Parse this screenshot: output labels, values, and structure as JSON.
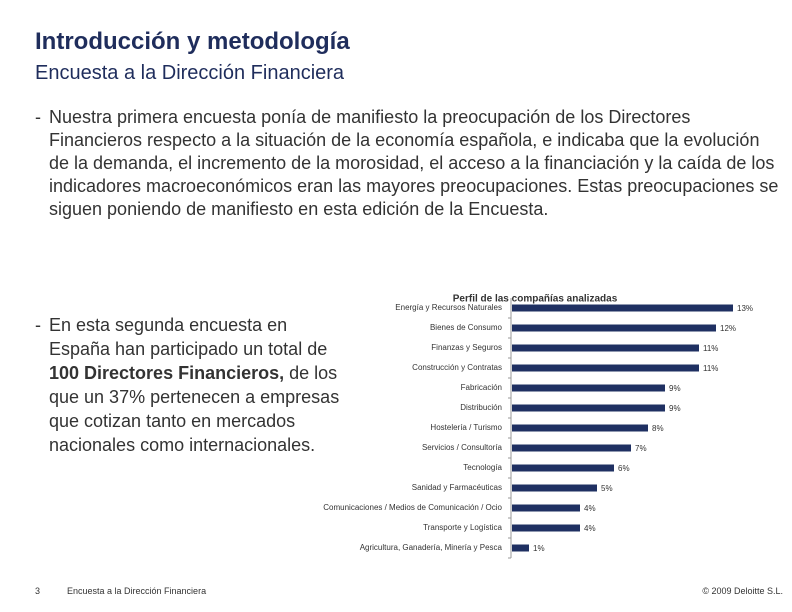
{
  "header": {
    "title": "Introducción y metodología",
    "subtitle": "Encuesta a la Dirección Financiera"
  },
  "paragraph1": {
    "bullet": "-",
    "text": "Nuestra primera encuesta ponía de manifiesto la preocupación de los Directores Financieros respecto a la situación de la economía española, e indicaba que la evolución de la demanda, el incremento de la morosidad, el acceso a la financiación y la caída de los indicadores macroeconómicos eran las mayores preocupaciones. Estas preocupaciones se siguen poniendo de manifiesto en esta edición de la Encuesta."
  },
  "paragraph2": {
    "bullet": "-",
    "before": "En esta segunda encuesta en España han participado un total de",
    "bold": "100 Directores Financieros,",
    "after": "de los que un 37% pertenecen a empresas que cotizan tanto en mercados nacionales como internacionales."
  },
  "chart_data": {
    "type": "hbar",
    "title": "Perfil de las compañías analizadas",
    "color": "#1f3062",
    "categories": [
      "Energía y Recursos Naturales",
      "Bienes de Consumo",
      "Finanzas y Seguros",
      "Construcción y Contratas",
      "Fabricación",
      "Distribución",
      "Hostelería / Turismo",
      "Servicios / Consultoría",
      "Tecnología",
      "Sanidad y Farmacéuticas",
      "Comunicaciones / Medios de Comunicación / Ocio",
      "Transporte y Logística",
      "Agricultura, Ganadería, Minería y Pesca"
    ],
    "values": [
      13,
      12,
      11,
      11,
      9,
      9,
      8,
      7,
      6,
      5,
      4,
      4,
      1
    ],
    "value_labels": [
      "13%",
      "12%",
      "11%",
      "11%",
      "9%",
      "9%",
      "8%",
      "7%",
      "6%",
      "5%",
      "4%",
      "4%",
      "1%"
    ]
  },
  "footer": {
    "page": "3",
    "title": "Encuesta a la Dirección Financiera",
    "copyright": "© 2009 Deloitte S.L."
  }
}
